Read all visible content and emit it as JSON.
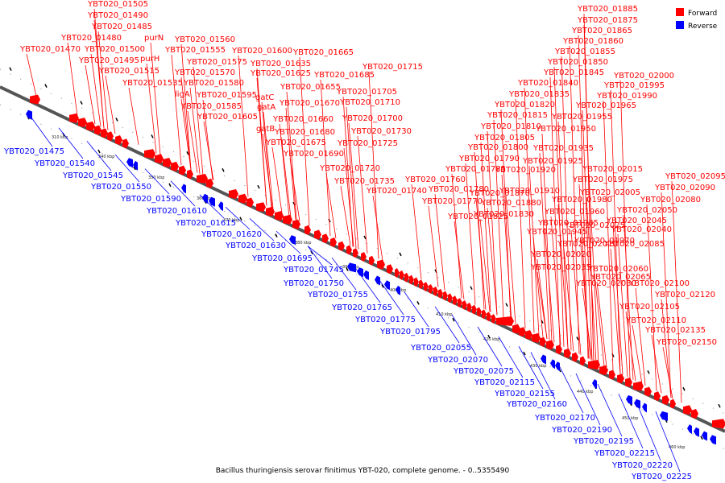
{
  "legend": {
    "forward_label": "Forward",
    "reverse_label": "Reverse",
    "forward_color": "#ff0000",
    "reverse_color": "#0000ff"
  },
  "caption": "Bacillus thuringiensis serovar finitimus YBT-020, complete genome. - 0..5355490",
  "ticks": [
    "310 kbp",
    "340 kbp",
    "350 kbp",
    "360 kbp",
    "370 kbp",
    "380 kbp",
    "390 kbp",
    "400 kbp",
    "410 kbp",
    "420 kbp",
    "430 kbp",
    "440 kbp",
    "450 kbp",
    "460 kbp"
  ],
  "forward_labels": [
    "YBT020_01505",
    "YBT020_01490",
    "YBT020_01485",
    "YBT020_01480",
    "YBT020_01470",
    "purN",
    "YBT020_01500",
    "YBT020_01495",
    "purH",
    "YBT020_01515",
    "YBT020_01535",
    "ligA",
    "YBT020_01560",
    "YBT020_01555",
    "YBT020_01575",
    "YBT020_01570",
    "YBT020_01580",
    "YBT020_01595",
    "YBT020_01585",
    "YBT020_01605",
    "YBT020_01600",
    "YBT020_01635",
    "YBT020_01625",
    "gatC",
    "gatA",
    "gatB",
    "YBT020_01665",
    "YBT020_01655",
    "YBT020_01685",
    "YBT020_01670",
    "YBT020_01660",
    "YBT020_01680",
    "YBT020_01675",
    "YBT020_01690",
    "YBT020_01715",
    "YBT020_01705",
    "YBT020_01710",
    "YBT020_01700",
    "YBT020_01730",
    "YBT020_01725",
    "YBT020_01720",
    "YBT020_01735",
    "YBT020_01740",
    "YBT020_01885",
    "YBT020_01875",
    "YBT020_01865",
    "YBT020_01860",
    "YBT020_01855",
    "YBT020_01850",
    "YBT020_01845",
    "YBT020_01840",
    "YBT020_01835",
    "YBT020_01820",
    "YBT020_01815",
    "YBT020_01810",
    "YBT020_01805",
    "YBT020_01800",
    "YBT020_01790",
    "YBT020_01785",
    "YBT020_01760",
    "YBT020_01780",
    "YBT020_01770",
    "YBT020_01830",
    "YBT020_01825",
    "YBT020_01880",
    "YBT020_01870",
    "YBT020_01910",
    "YBT020_01920",
    "YBT020_01925",
    "YBT020_01935",
    "YBT020_01950",
    "YBT020_01955",
    "YBT020_01965",
    "YBT020_01990",
    "YBT020_01995",
    "YBT020_02000",
    "YBT020_02015",
    "YBT020_01975",
    "YBT020_02005",
    "YBT020_01980",
    "YBT020_01960",
    "YBT020_01985",
    "YBT020_01945",
    "YBT020_01970",
    "YBT020_02025",
    "YBT020_02010",
    "YBT020_02020",
    "YBT020_02035",
    "YBT020_02030",
    "YBT020_02065",
    "YBT020_02060",
    "YBT020_02100",
    "YBT020_02105",
    "YBT020_02110",
    "YBT020_02095",
    "YBT020_02090",
    "YBT020_02080",
    "YBT020_02050",
    "YBT020_02045",
    "YBT020_02040",
    "YBT020_02085",
    "YBT020_02120",
    "YBT020_02135",
    "YBT020_02150"
  ],
  "reverse_labels": [
    "YBT020_01475",
    "YBT020_01540",
    "YBT020_01545",
    "YBT020_01550",
    "YBT020_01590",
    "YBT020_01610",
    "YBT020_01615",
    "YBT020_01620",
    "YBT020_01630",
    "YBT020_01695",
    "YBT020_01745",
    "YBT020_01750",
    "YBT020_01755",
    "YBT020_01765",
    "YBT020_01775",
    "YBT020_01795",
    "YBT020_02055",
    "YBT020_02070",
    "YBT020_02075",
    "YBT020_02115",
    "YBT020_02155",
    "YBT020_02160",
    "YBT020_02170",
    "YBT020_02190",
    "YBT020_02195",
    "YBT020_02215",
    "YBT020_02220",
    "YBT020_02225"
  ]
}
